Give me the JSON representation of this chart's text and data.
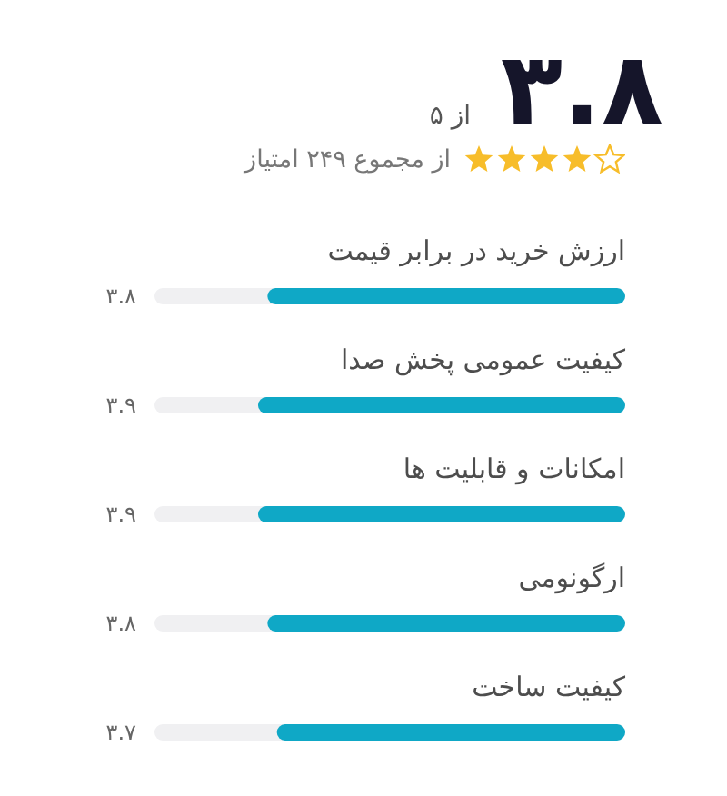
{
  "chart_data": {
    "type": "bar",
    "orientation": "horizontal",
    "title": "۳.۸",
    "subtitle": "از ۵",
    "annotations": [
      "از مجموع ۲۴۹ امتیاز"
    ],
    "categories": [
      "ارزش خرید در برابر قیمت",
      "کیفیت عمومی پخش صدا",
      "امکانات و قابلیت ها",
      "ارگونومی",
      "کیفیت ساخت"
    ],
    "values": [
      3.8,
      3.9,
      3.9,
      3.8,
      3.7
    ],
    "value_labels": [
      "۳.۸",
      "۳.۹",
      "۳.۹",
      "۳.۸",
      "۳.۷"
    ],
    "color": "#0fa8c6",
    "xlim": [
      5,
      0
    ],
    "tick_labels": "y",
    "grid": false
  }
}
